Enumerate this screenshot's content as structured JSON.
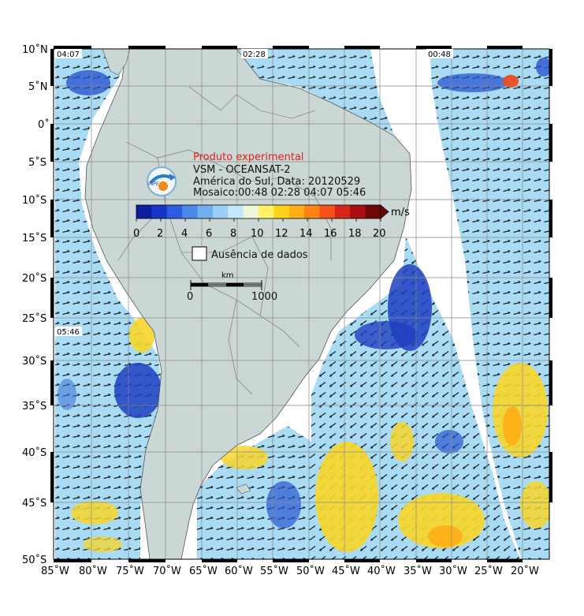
{
  "map": {
    "lon_labels": [
      "85˚W",
      "80˚W",
      "75˚W",
      "70˚W",
      "65˚W",
      "60˚W",
      "55˚W",
      "50˚W",
      "45˚W",
      "40˚W",
      "35˚W",
      "30˚W",
      "25˚W",
      "20˚W"
    ],
    "lat_labels": [
      "10˚N",
      "5˚N",
      "0˚",
      "5˚S",
      "10˚S",
      "15˚S",
      "20˚S",
      "25˚S",
      "30˚S",
      "35˚S",
      "40˚S",
      "45˚S",
      "50˚S"
    ],
    "pass_times": [
      "04:07",
      "02:28",
      "00:48",
      "05:46"
    ]
  },
  "info": {
    "title": "Produto experimental",
    "line1": "VSM - OCEANSAT-2",
    "line2": "América do Sul, Data: 20120529",
    "line3": "Mosaico:00:48 02:28 04:07 05:46"
  },
  "colorbar": {
    "unit": "m/s",
    "ticks": [
      "0",
      "2",
      "4",
      "6",
      "8",
      "10",
      "12",
      "14",
      "16",
      "18",
      "20"
    ],
    "colors": [
      "#0a1f9e",
      "#1733c8",
      "#2c5ce0",
      "#4c8ae8",
      "#6fb0ee",
      "#9bd0f2",
      "#c4e8f6",
      "#ecf8d8",
      "#fff36a",
      "#ffd21a",
      "#ffae16",
      "#ff8214",
      "#f4521a",
      "#d62418",
      "#a80e14",
      "#6e0708"
    ]
  },
  "legend": {
    "no_data": "Ausência de dados",
    "scale_unit": "km",
    "scale_start": "0",
    "scale_end": "1000"
  },
  "colors": {
    "land": "#cbd7d4",
    "ocean_blue": "#3f78d8",
    "ocean_light": "#a9dcf4",
    "ocean_yellow": "#f7d62a"
  }
}
